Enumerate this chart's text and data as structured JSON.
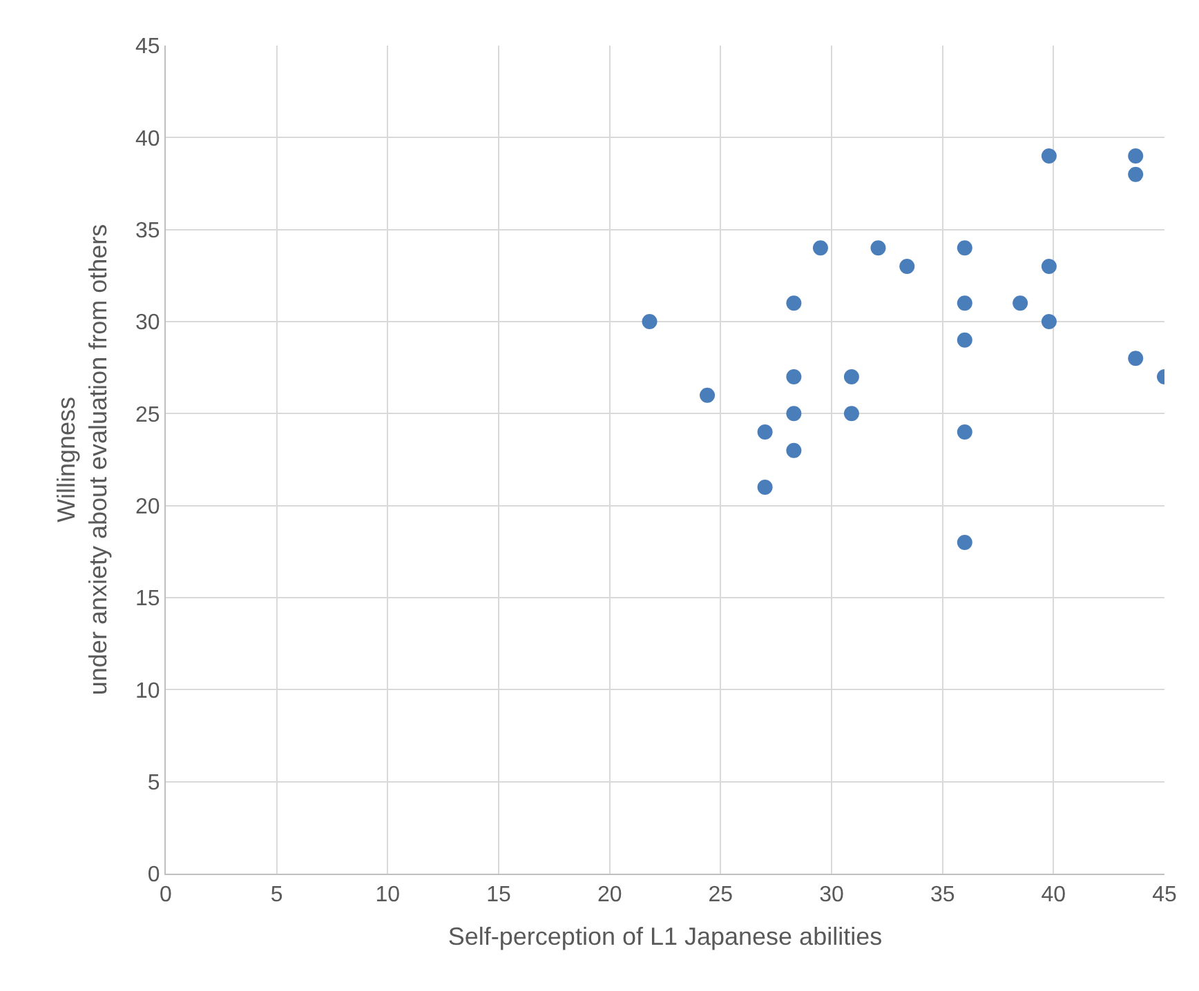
{
  "chart_data": {
    "type": "scatter",
    "xlabel": "Self-perception of L1 Japanese abilities",
    "ylabel": "Willingness\nunder anxiety about evaluation from others",
    "x": [
      21.8,
      24.4,
      27.0,
      27.0,
      28.3,
      28.3,
      28.3,
      28.3,
      29.5,
      30.9,
      30.9,
      32.1,
      33.4,
      36.0,
      36.0,
      36.0,
      36.0,
      36.0,
      38.5,
      39.8,
      39.8,
      39.8,
      43.7,
      43.7,
      43.7,
      45.0
    ],
    "series": [
      {
        "color": "#4a7ebb",
        "values": [
          30,
          26,
          24,
          21,
          31,
          27,
          25,
          23,
          34,
          27,
          25,
          34,
          33,
          34,
          31,
          29,
          24,
          18,
          31,
          39,
          33,
          30,
          39,
          38,
          28,
          27
        ]
      }
    ],
    "xlim": [
      0,
      45
    ],
    "xticks": [
      0,
      5,
      10,
      15,
      20,
      25,
      30,
      35,
      40,
      45
    ],
    "ylim": [
      0,
      45
    ],
    "yticks": [
      0,
      5,
      10,
      15,
      20,
      25,
      30,
      35,
      40,
      45
    ],
    "grid": true,
    "marker": "circle"
  }
}
